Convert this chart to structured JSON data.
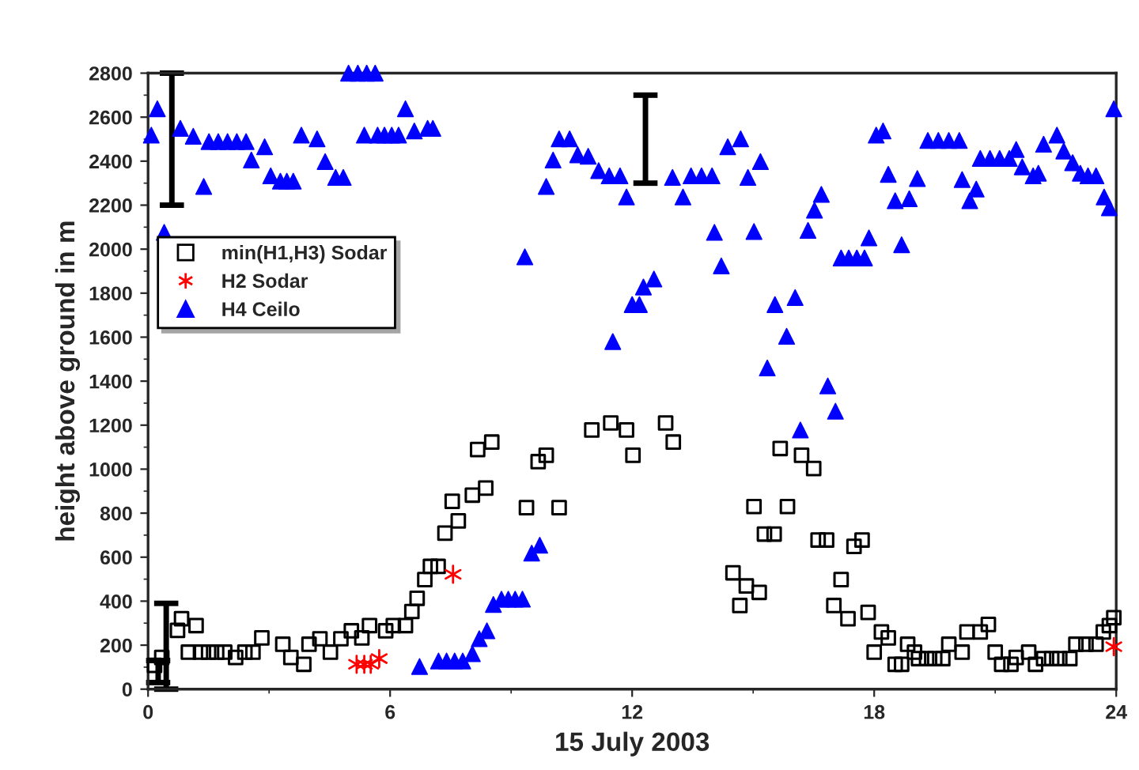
{
  "chart_data": {
    "type": "scatter",
    "xlabel": "15 July 2003",
    "ylabel": "height above ground in m",
    "xlim": [
      0,
      24
    ],
    "xticks": [
      0,
      6,
      12,
      18,
      24
    ],
    "ylim": [
      0,
      2800
    ],
    "yticks": [
      0,
      200,
      400,
      600,
      800,
      1000,
      1200,
      1400,
      1600,
      1800,
      2000,
      2200,
      2400,
      2600,
      2800
    ],
    "grid": false,
    "legend": "left",
    "series": [
      {
        "name": "min(H1,H3) Sodar",
        "color": "#000000",
        "marker": "square",
        "x": [
          0.16,
          0.34,
          0.73,
          0.83,
          1.0,
          1.19,
          1.3,
          1.5,
          1.7,
          1.9,
          2.17,
          2.4,
          2.6,
          2.82,
          3.34,
          3.54,
          3.86,
          3.99,
          4.26,
          4.52,
          4.78,
          5.04,
          5.3,
          5.49,
          5.89,
          6.08,
          6.38,
          6.54,
          6.67,
          6.86,
          7.0,
          7.19,
          7.36,
          7.54,
          7.69,
          8.04,
          8.17,
          8.37,
          8.52,
          9.38,
          9.67,
          9.87,
          10.19,
          11.0,
          11.47,
          11.86,
          12.02,
          12.83,
          13.02,
          14.5,
          14.67,
          14.83,
          15.02,
          15.15,
          15.28,
          15.52,
          15.67,
          15.85,
          16.2,
          16.5,
          16.61,
          16.82,
          17.0,
          17.18,
          17.35,
          17.5,
          17.7,
          17.85,
          18.0,
          18.18,
          18.35,
          18.52,
          18.68,
          18.83,
          19.0,
          19.1,
          19.3,
          19.5,
          19.7,
          19.85,
          20.18,
          20.3,
          20.63,
          20.83,
          21.0,
          21.16,
          21.39,
          21.52,
          21.83,
          22.0,
          22.2,
          22.4,
          22.6,
          22.85,
          23.0,
          23.25,
          23.5,
          23.68,
          23.83,
          23.94
        ],
        "values": [
          108,
          144,
          267,
          320,
          168,
          289,
          168,
          168,
          168,
          168,
          144,
          168,
          168,
          233,
          204,
          144,
          113,
          204,
          229,
          168,
          229,
          265,
          233,
          289,
          265,
          289,
          289,
          353,
          413,
          498,
          558,
          558,
          709,
          854,
          765,
          882,
          1089,
          914,
          1123,
          825,
          1034,
          1063,
          825,
          1178,
          1210,
          1178,
          1063,
          1210,
          1123,
          529,
          380,
          469,
          830,
          440,
          705,
          705,
          1094,
          830,
          1063,
          1003,
          678,
          678,
          380,
          498,
          320,
          649,
          678,
          349,
          168,
          260,
          233,
          113,
          113,
          204,
          168,
          139,
          139,
          139,
          139,
          204,
          168,
          260,
          260,
          294,
          168,
          113,
          113,
          144,
          168,
          113,
          139,
          139,
          139,
          139,
          204,
          204,
          204,
          260,
          289,
          325
        ]
      },
      {
        "name": "H2 Sodar",
        "color": "#ff0000",
        "marker": "cross",
        "x": [
          5.17,
          5.36,
          5.52,
          5.73,
          7.56,
          23.94
        ],
        "values": [
          113,
          113,
          113,
          139,
          522,
          193
        ]
      },
      {
        "name": "H4 Ceilo",
        "color": "#0000ff",
        "marker": "triangle",
        "x": [
          0.08,
          0.23,
          0.4,
          0.8,
          1.12,
          1.38,
          1.51,
          1.74,
          1.97,
          2.2,
          2.43,
          2.56,
          2.89,
          3.04,
          3.28,
          3.44,
          3.6,
          3.8,
          4.19,
          4.39,
          4.65,
          4.84,
          4.97,
          5.2,
          5.36,
          5.42,
          5.63,
          5.69,
          5.86,
          6.04,
          6.21,
          6.38,
          6.6,
          6.73,
          6.93,
          7.06,
          7.2,
          7.4,
          7.6,
          7.8,
          8.04,
          8.21,
          8.4,
          8.56,
          8.76,
          8.93,
          9.1,
          9.28,
          9.34,
          9.51,
          9.71,
          9.87,
          10.04,
          10.19,
          10.45,
          10.65,
          10.91,
          11.17,
          11.43,
          11.52,
          11.7,
          11.86,
          12.0,
          12.18,
          12.28,
          12.54,
          13.0,
          13.26,
          13.46,
          13.72,
          13.98,
          14.04,
          14.21,
          14.37,
          14.69,
          14.87,
          15.02,
          15.18,
          15.35,
          15.54,
          15.83,
          16.04,
          16.17,
          16.36,
          16.52,
          16.69,
          16.85,
          17.04,
          17.18,
          17.37,
          17.57,
          17.76,
          17.87,
          18.05,
          18.22,
          18.35,
          18.52,
          18.68,
          18.87,
          19.07,
          19.33,
          19.59,
          19.85,
          20.11,
          20.18,
          20.37,
          20.53,
          20.63,
          20.87,
          21.11,
          21.35,
          21.52,
          21.67,
          21.94,
          22.07,
          22.2,
          22.53,
          22.7,
          22.92,
          23.11,
          23.3,
          23.5,
          23.7,
          23.83,
          23.94
        ],
        "values": [
          2518,
          2638,
          2076,
          2549,
          2513,
          2285,
          2489,
          2489,
          2489,
          2489,
          2489,
          2405,
          2465,
          2333,
          2309,
          2309,
          2309,
          2518,
          2501,
          2398,
          2326,
          2326,
          2800,
          2800,
          2518,
          2800,
          2800,
          2518,
          2518,
          2518,
          2518,
          2638,
          2537,
          103,
          2549,
          2549,
          128,
          128,
          128,
          128,
          161,
          229,
          265,
          385,
          409,
          409,
          409,
          409,
          1965,
          618,
          654,
          2285,
          2405,
          2501,
          2501,
          2429,
          2422,
          2357,
          2333,
          1580,
          2333,
          2237,
          1748,
          1748,
          1828,
          1864,
          2326,
          2237,
          2333,
          2333,
          2333,
          2076,
          1924,
          2465,
          2501,
          2326,
          2080,
          2398,
          1460,
          1748,
          1604,
          1780,
          1178,
          2085,
          2177,
          2249,
          1378,
          1263,
          1960,
          1960,
          1960,
          1960,
          2051,
          2518,
          2537,
          2340,
          2220,
          2020,
          2229,
          2321,
          2494,
          2494,
          2494,
          2494,
          2316,
          2220,
          2273,
          2412,
          2412,
          2412,
          2412,
          2453,
          2374,
          2333,
          2345,
          2477,
          2518,
          2446,
          2393,
          2345,
          2333,
          2333,
          2237,
          2188,
          2638
        ]
      },
      {
        "type": "line",
        "color": "#000000",
        "marker": "none",
        "x": [
          0.59,
          0.59
        ],
        "values": [
          2200,
          2800
        ]
      },
      {
        "type": "line",
        "color": "#000000",
        "marker": "none",
        "x": [
          12.33,
          12.33
        ],
        "values": [
          2300,
          2700
        ]
      },
      {
        "type": "line",
        "color": "#000000",
        "marker": "none",
        "x": [
          0.45,
          0.45
        ],
        "values": [
          0,
          390
        ]
      },
      {
        "type": "line",
        "color": "#000000",
        "marker": "none",
        "x": [
          0.25,
          0.25
        ],
        "values": [
          30,
          130
        ]
      }
    ]
  }
}
